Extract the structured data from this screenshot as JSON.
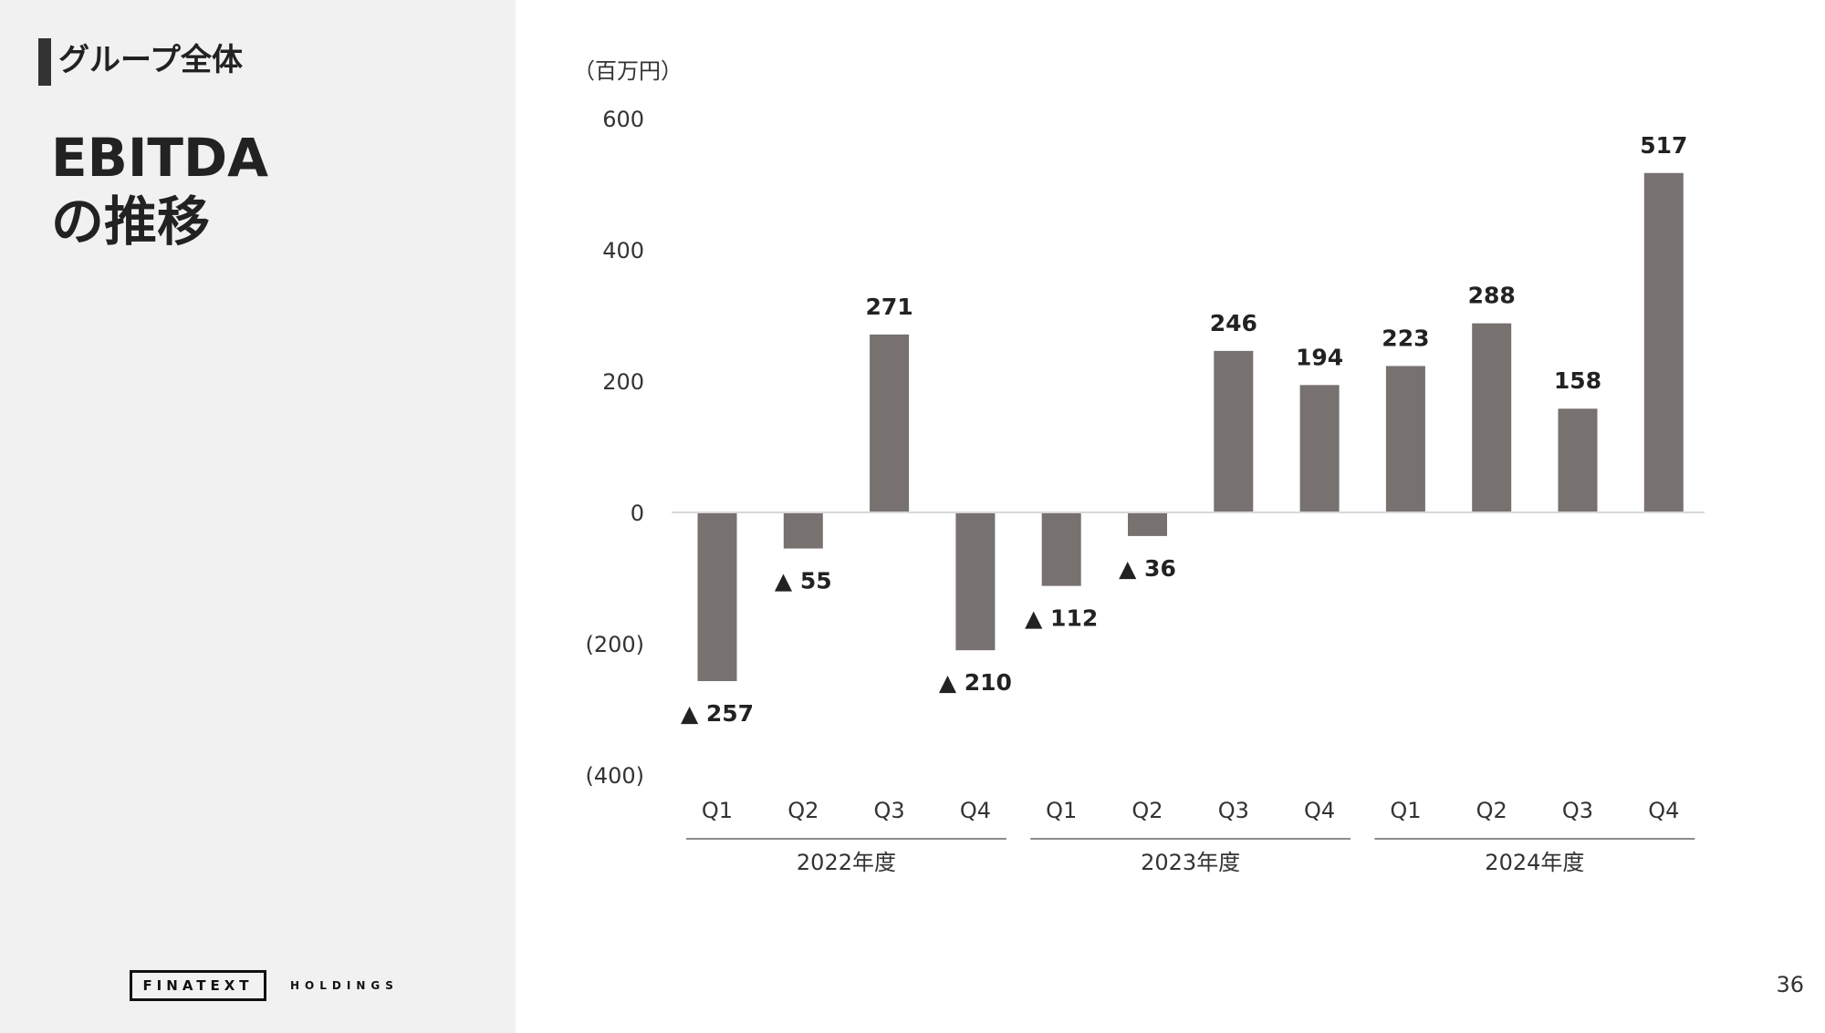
{
  "header": {
    "section_label": "グループ全体",
    "title_line1": "EBITDA",
    "title_line2": "の推移"
  },
  "footer": {
    "logo_text": "FINATEXT",
    "logo_subtext": "HOLDINGS",
    "page_number": "36"
  },
  "colors": {
    "bar": "#777170",
    "sidebar_bg": "#f1f1f1"
  },
  "chart_data": {
    "type": "bar",
    "unit_label": "（百万円）",
    "categories": [
      "Q1",
      "Q2",
      "Q3",
      "Q4",
      "Q1",
      "Q2",
      "Q3",
      "Q4",
      "Q1",
      "Q2",
      "Q3",
      "Q4"
    ],
    "values": [
      -257,
      -55,
      271,
      -210,
      -112,
      -36,
      246,
      194,
      223,
      288,
      158,
      517
    ],
    "value_labels": [
      "▲ 257",
      "▲ 55",
      "271",
      "▲ 210",
      "▲ 112",
      "▲ 36",
      "246",
      "194",
      "223",
      "288",
      "158",
      "517"
    ],
    "groups": [
      {
        "label": "2022年度",
        "start": 0,
        "end": 3
      },
      {
        "label": "2023年度",
        "start": 4,
        "end": 7
      },
      {
        "label": "2024年度",
        "start": 8,
        "end": 11
      }
    ],
    "ylim": [
      -400,
      600
    ],
    "yticks": [
      600,
      400,
      200,
      0,
      -200,
      -400
    ],
    "ytick_labels": [
      "600",
      "400",
      "200",
      "0",
      "(200)",
      "(400)"
    ],
    "grid": false,
    "legend": "none"
  }
}
